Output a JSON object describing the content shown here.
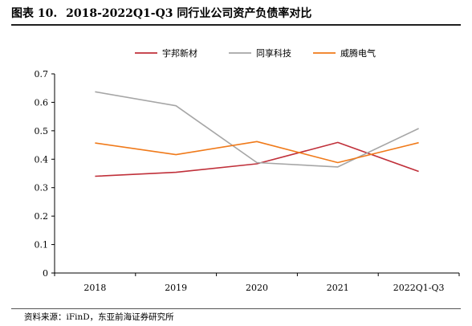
{
  "figure": {
    "number": "图表 10.",
    "title": "2018-2022Q1-Q3 同行业公司资产负债率对比",
    "source": "资料来源：iFinD，东亚前海证券研究所"
  },
  "chart_data": {
    "type": "line",
    "categories": [
      "2018",
      "2019",
      "2020",
      "2021",
      "2022Q1-Q3"
    ],
    "series": [
      {
        "name": "宇邦新材",
        "color": "#c0303a",
        "values": [
          0.34,
          0.354,
          0.384,
          0.459,
          0.357
        ]
      },
      {
        "name": "同享科技",
        "color": "#a6a6a6",
        "values": [
          0.637,
          0.588,
          0.388,
          0.373,
          0.508
        ]
      },
      {
        "name": "威腾电气",
        "color": "#f07a1a",
        "values": [
          0.457,
          0.416,
          0.462,
          0.388,
          0.458
        ]
      }
    ],
    "ylim": [
      0,
      0.7
    ],
    "yticks": [
      "0",
      "0.1",
      "0.2",
      "0.3",
      "0.4",
      "0.5",
      "0.6",
      "0.7"
    ],
    "legend": "top-center",
    "grid": false
  }
}
